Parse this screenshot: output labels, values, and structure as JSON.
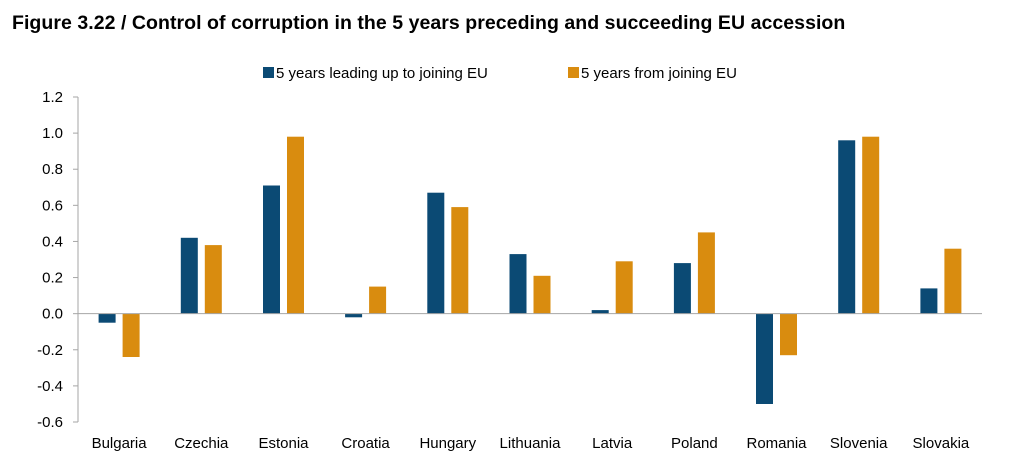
{
  "chart_data": {
    "type": "bar",
    "title": "Figure 3.22 / Control of corruption in the 5 years preceding and succeeding EU accession",
    "xlabel": "",
    "ylabel": "",
    "categories": [
      "Bulgaria",
      "Czechia",
      "Estonia",
      "Croatia",
      "Hungary",
      "Lithuania",
      "Latvia",
      "Poland",
      "Romania",
      "Slovenia",
      "Slovakia"
    ],
    "series": [
      {
        "name": "5 years leading up to joining EU",
        "color": "#0b4a74",
        "values": [
          -0.05,
          0.42,
          0.71,
          -0.02,
          0.67,
          0.33,
          0.02,
          0.28,
          -0.5,
          0.96,
          0.14
        ]
      },
      {
        "name": "5 years from joining EU",
        "color": "#d98c0f",
        "values": [
          -0.24,
          0.38,
          0.98,
          0.15,
          0.59,
          0.21,
          0.29,
          0.45,
          -0.23,
          0.98,
          0.36
        ]
      }
    ],
    "ylim": [
      -0.6,
      1.2
    ],
    "yticks": [
      "1.2",
      "1.0",
      "0.8",
      "0.6",
      "0.4",
      "0.2",
      "0.0",
      "-0.2",
      "-0.4",
      "-0.6"
    ],
    "grid": false,
    "legend": "top"
  }
}
